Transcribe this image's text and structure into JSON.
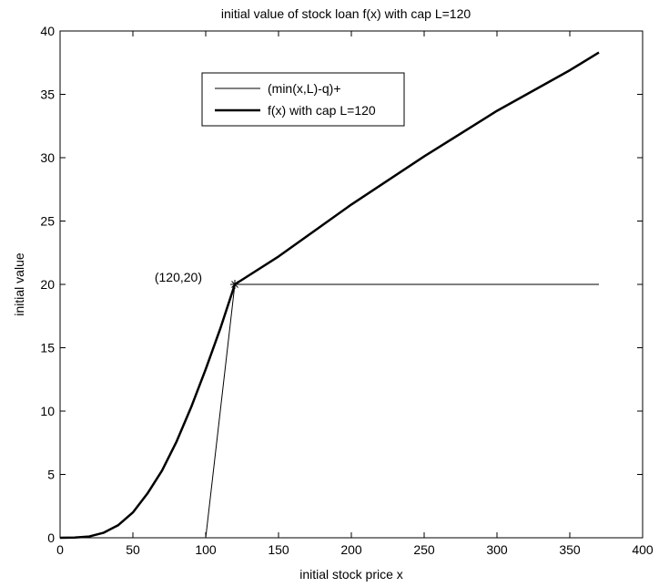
{
  "chart_data": {
    "type": "line",
    "title": "initial value of stock loan f(x) with cap L=120",
    "xlabel": "initial stock price x",
    "ylabel": "initial value",
    "xlim": [
      0,
      400
    ],
    "ylim": [
      0,
      40
    ],
    "xticks": [
      0,
      50,
      100,
      150,
      200,
      250,
      300,
      350,
      400
    ],
    "yticks": [
      0,
      5,
      10,
      15,
      20,
      25,
      30,
      35,
      40
    ],
    "grid": false,
    "legend_position": "top-center",
    "series": [
      {
        "name": "(min(x,L)-q)+",
        "style": "thin",
        "x": [
          0,
          100,
          120,
          370
        ],
        "y": [
          0,
          0,
          20,
          20
        ]
      },
      {
        "name": "f(x) with cap L=120",
        "style": "thick",
        "x": [
          0,
          10,
          20,
          30,
          40,
          50,
          60,
          70,
          80,
          90,
          100,
          110,
          120,
          150,
          200,
          250,
          300,
          350,
          370
        ],
        "y": [
          0,
          0.02,
          0.1,
          0.4,
          1.0,
          2.0,
          3.5,
          5.3,
          7.6,
          10.3,
          13.3,
          16.5,
          20.0,
          22.2,
          26.3,
          30.1,
          33.7,
          36.9,
          38.3
        ]
      }
    ],
    "annotations": [
      {
        "text": "(120,20)",
        "x": 120,
        "y": 20,
        "marker": "*"
      }
    ]
  }
}
